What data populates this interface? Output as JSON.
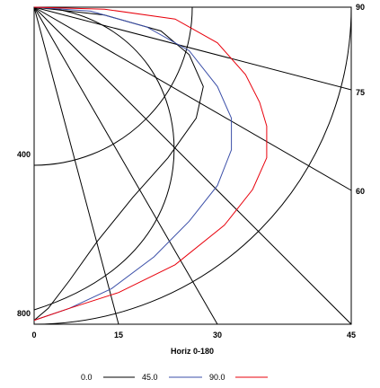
{
  "chart_data": {
    "type": "line",
    "title": "",
    "xlabel": "Horiz 0-180",
    "ylabel": "",
    "x_ticks": [
      "0",
      "15",
      "30",
      "45"
    ],
    "y_left_ticks": [
      "400",
      "800"
    ],
    "y_right_ticks": [
      "90",
      "75",
      "60"
    ],
    "legend_position": "bottom",
    "series": [
      {
        "name": "0.0",
        "color": "#000000",
        "points": [
          [
            0,
            0
          ],
          [
            10,
            20
          ],
          [
            18,
            60
          ],
          [
            22,
            120
          ],
          [
            24,
            200
          ],
          [
            23,
            280
          ],
          [
            19,
            380
          ],
          [
            14,
            480
          ],
          [
            9,
            590
          ],
          [
            5,
            690
          ],
          [
            2,
            760
          ],
          [
            0,
            790
          ]
        ]
      },
      {
        "name": "45.0",
        "color": "#3b4fa8",
        "points": [
          [
            0,
            0
          ],
          [
            8,
            10
          ],
          [
            16,
            50
          ],
          [
            22,
            110
          ],
          [
            26,
            200
          ],
          [
            28,
            280
          ],
          [
            28,
            360
          ],
          [
            26,
            450
          ],
          [
            22,
            540
          ],
          [
            17,
            630
          ],
          [
            11,
            710
          ],
          [
            5,
            760
          ],
          [
            0,
            790
          ]
        ]
      },
      {
        "name": "90.0",
        "color": "#e8000b",
        "points": [
          [
            0,
            0
          ],
          [
            10,
            5
          ],
          [
            20,
            30
          ],
          [
            26,
            90
          ],
          [
            30,
            170
          ],
          [
            32,
            240
          ],
          [
            33,
            300
          ],
          [
            33,
            380
          ],
          [
            31,
            460
          ],
          [
            27,
            550
          ],
          [
            20,
            650
          ],
          [
            12,
            720
          ],
          [
            5,
            760
          ],
          [
            0,
            790
          ]
        ]
      }
    ]
  }
}
